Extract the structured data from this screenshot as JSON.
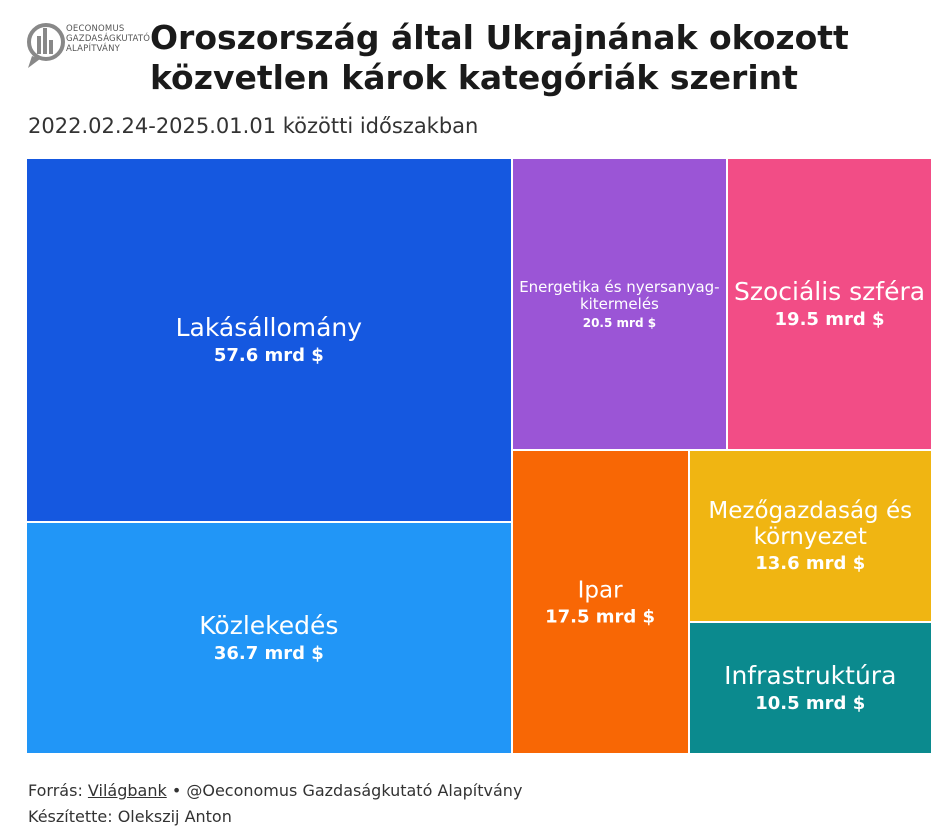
{
  "header": {
    "logo_text": [
      "OECONOMUS",
      "GAZDASÁGKUTATÓ",
      "ALAPÍTVÁNY"
    ],
    "title": "Oroszország által Ukrajnának okozott közvetlen károk kategóriák szerint",
    "subtitle": "2022.02.24-2025.01.01 közötti időszakban"
  },
  "chart_data": {
    "type": "treemap",
    "title": "Oroszország által Ukrajnának okozott közvetlen károk kategóriák szerint",
    "subtitle": "2022.02.24-2025.01.01 közötti időszakban",
    "unit": "mrd $",
    "items": [
      {
        "name": "Lakásállomány",
        "value": 57.6,
        "label": "57.6 mrd $",
        "color": "#1558e0"
      },
      {
        "name": "Közlekedés",
        "value": 36.7,
        "label": "36.7 mrd $",
        "color": "#2196f7"
      },
      {
        "name": "Energetika és nyersanyag-kitermelés",
        "value": 20.5,
        "label": "20.5 mrd $",
        "color": "#9b55d6"
      },
      {
        "name": "Szociális szféra",
        "value": 19.5,
        "label": "19.5 mrd $",
        "color": "#f24d86"
      },
      {
        "name": "Ipar",
        "value": 17.5,
        "label": "17.5 mrd $",
        "color": "#f86705"
      },
      {
        "name": "Mezőgazdaság és környezet",
        "value": 13.6,
        "label": "13.6 mrd $",
        "color": "#f0b512"
      },
      {
        "name": "Infrastruktúra",
        "value": 10.5,
        "label": "10.5 mrd $",
        "color": "#0b8a8e"
      }
    ]
  },
  "footer": {
    "source_prefix": "Forrás:",
    "source_link": "Világbank",
    "source_suffix": "• @Oeconomus Gazdaságkutató Alapítvány",
    "author": "Készítette: Olekszij Anton"
  }
}
